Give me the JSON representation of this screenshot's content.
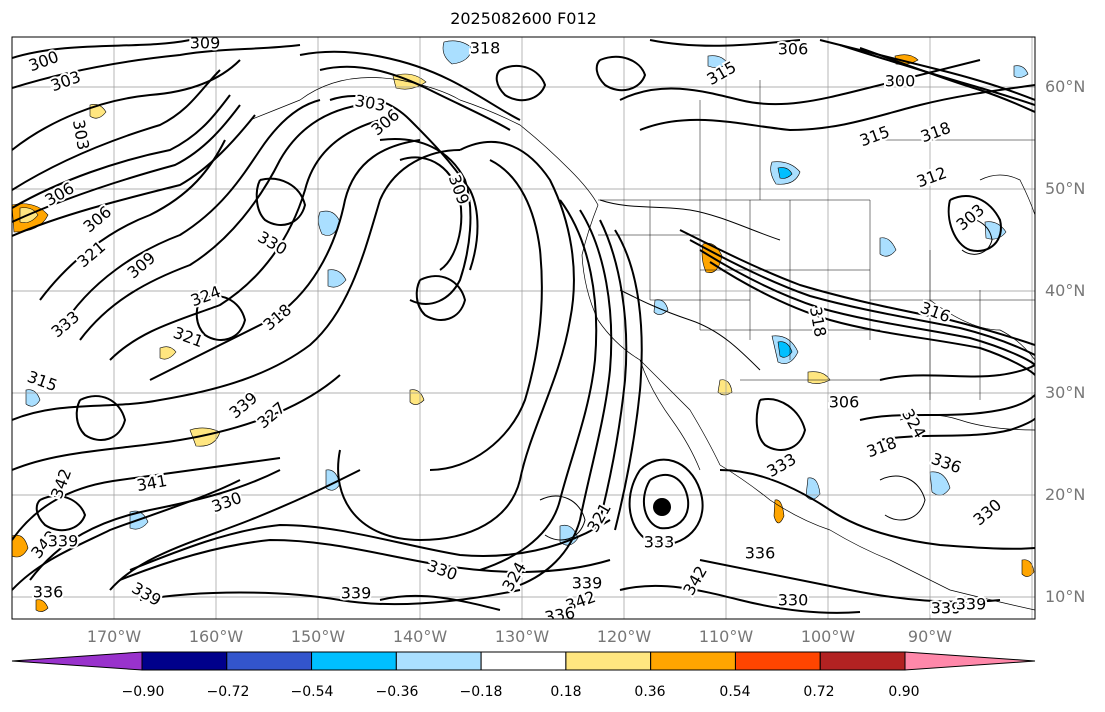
{
  "title": "2025082600 F012",
  "lat_labels": [
    "60°N",
    "50°N",
    "40°N",
    "30°N",
    "20°N",
    "10°N"
  ],
  "lon_labels": [
    "170°W",
    "160°W",
    "150°W",
    "140°W",
    "130°W",
    "120°W",
    "110°W",
    "100°W",
    "90°W"
  ],
  "colorbar": {
    "colors": [
      "#9932cc",
      "#00008b",
      "#3355cc",
      "#00bfff",
      "#aadfff",
      "#ffffff",
      "#ffe680",
      "#ffa500",
      "#ff4500",
      "#b22222",
      "#ff88aa"
    ],
    "tick_labels": [
      "−0.90",
      "−0.72",
      "−0.54",
      "−0.36",
      "−0.18",
      "0.18",
      "0.36",
      "0.54",
      "0.72",
      "0.90"
    ]
  },
  "contour_labels": [
    "300",
    "303",
    "303",
    "306",
    "309",
    "318",
    "306",
    "315",
    "300",
    "303",
    "306",
    "315",
    "318",
    "312",
    "309",
    "303",
    "324",
    "306",
    "321",
    "330",
    "333",
    "309",
    "318",
    "321",
    "316",
    "318",
    "315",
    "306",
    "339",
    "327",
    "324",
    "318",
    "336",
    "333",
    "330",
    "341",
    "330",
    "321",
    "324",
    "333",
    "342",
    "336",
    "330",
    "342",
    "342",
    "339",
    "336",
    "339",
    "330",
    "339",
    "342",
    "336",
    "339",
    "339",
    "339"
  ],
  "storm_marker": "tropical-cyclone-center"
}
